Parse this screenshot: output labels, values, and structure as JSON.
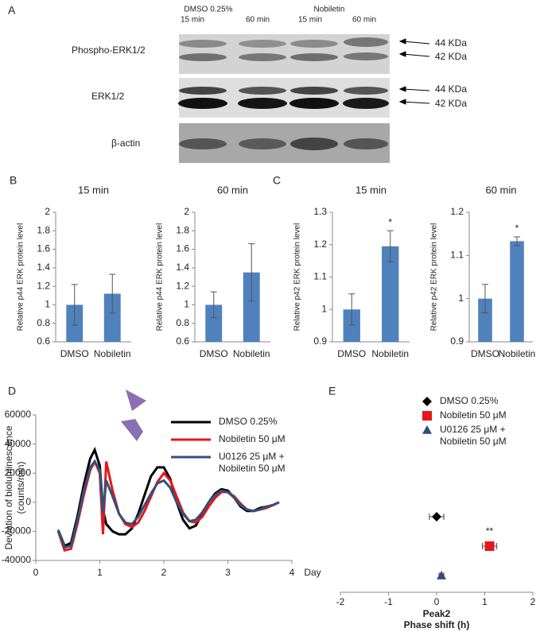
{
  "blot": {
    "label": "A",
    "groups": [
      "DMSO 0.25%",
      "Nobiletin"
    ],
    "times": [
      "15 min",
      "60 min",
      "15 min",
      "60 min"
    ],
    "rows": [
      "Phospho-ERK1/2",
      "ERK1/2",
      "β-actin"
    ],
    "bands": [
      "44 KDa",
      "42 KDa",
      "44 KDa",
      "42 KDa"
    ]
  },
  "chart_data": [
    {
      "type": "bar",
      "panel": "B",
      "title": "15 min",
      "ylabel": "Relative p44 ERK protein level",
      "categories": [
        "DMSO",
        "Nobiletin"
      ],
      "values": [
        1.0,
        1.12
      ],
      "errors": [
        0.22,
        0.21
      ],
      "color": "#4f81bd",
      "ylim": [
        0.6,
        2
      ],
      "yticks": [
        0.6,
        0.8,
        1,
        1.2,
        1.4,
        1.6,
        1.8,
        2
      ]
    },
    {
      "type": "bar",
      "title": "60 min",
      "ylabel": "Relative p44 ERK protein level",
      "categories": [
        "DMSO",
        "Nobiletin"
      ],
      "values": [
        1.0,
        1.35
      ],
      "errors": [
        0.14,
        0.31
      ],
      "color": "#4f81bd",
      "ylim": [
        0.6,
        2
      ],
      "yticks": [
        0.6,
        0.8,
        1,
        1.2,
        1.4,
        1.6,
        1.8,
        2
      ]
    },
    {
      "type": "bar",
      "panel": "C",
      "title": "15 min",
      "ylabel": "Relative p42 ERK protein level",
      "categories": [
        "DMSO",
        "Nobiletin"
      ],
      "values": [
        1.0,
        1.195
      ],
      "errors": [
        0.048,
        0.048
      ],
      "color": "#4f81bd",
      "annotation": "*",
      "ylim": [
        0.9,
        1.3
      ],
      "yticks": [
        0.9,
        1,
        1.1,
        1.2,
        1.3
      ]
    },
    {
      "type": "bar",
      "title": "60 min",
      "ylabel": "Relative p42 ERK protein level",
      "categories": [
        "DMSO",
        "Nobiletin"
      ],
      "values": [
        1.0,
        1.133
      ],
      "errors": [
        0.033,
        0.01
      ],
      "color": "#4f81bd",
      "annotation": "*",
      "ylim": [
        0.9,
        1.2
      ],
      "yticks": [
        0.9,
        1,
        1.1,
        1.2
      ]
    },
    {
      "type": "line",
      "panel": "D",
      "ylabel": [
        "Deviation of bioluminescence",
        "(counts/min)"
      ],
      "xlabel": "Day",
      "x": [
        0.35,
        0.45,
        0.55,
        0.65,
        0.75,
        0.85,
        0.92,
        1.0,
        1.05,
        1.1,
        1.2,
        1.3,
        1.4,
        1.5,
        1.6,
        1.7,
        1.8,
        1.9,
        2.0,
        2.1,
        2.2,
        2.3,
        2.4,
        2.5,
        2.6,
        2.7,
        2.8,
        2.9,
        3.0,
        3.1,
        3.2,
        3.3,
        3.4,
        3.5,
        3.6,
        3.7,
        3.8
      ],
      "series": [
        {
          "name": "DMSO 0.25%",
          "color": "#000000",
          "values": [
            -19000,
            -30000,
            -28000,
            -10000,
            12000,
            30000,
            36000,
            25000,
            -5000,
            -15000,
            -20000,
            -22000,
            -22000,
            -18000,
            -8000,
            5000,
            18000,
            24000,
            24000,
            16000,
            0,
            -12000,
            -18000,
            -16000,
            -8000,
            0,
            6000,
            9000,
            8000,
            3000,
            -3000,
            -6000,
            -6000,
            -4000,
            -3000,
            -2000,
            0
          ]
        },
        {
          "name": "Nobiletin 50 μM",
          "color": "#e8161b",
          "values": [
            -20000,
            -33000,
            -32000,
            -15000,
            5000,
            22000,
            28000,
            20000,
            -22000,
            28000,
            8000,
            -8000,
            -15000,
            -17000,
            -14000,
            -6000,
            4000,
            14000,
            20000,
            15000,
            4000,
            -7000,
            -13000,
            -14000,
            -10000,
            -3000,
            3000,
            7000,
            7000,
            4000,
            -1000,
            -5000,
            -6000,
            -5000,
            -4000,
            -2000,
            0
          ]
        },
        {
          "name": "U0126 25 μM + Nobiletin 50 μM",
          "color": "#34507a",
          "values": [
            -19000,
            -31000,
            -30000,
            -13000,
            8000,
            24000,
            28000,
            22000,
            -8000,
            15000,
            4000,
            -8000,
            -14000,
            -15000,
            -10000,
            -2000,
            6000,
            13000,
            15000,
            10000,
            0,
            -8000,
            -13000,
            -12000,
            -7000,
            0,
            5000,
            8000,
            7000,
            3000,
            -2000,
            -5000,
            -6000,
            -5000,
            -3000,
            -2000,
            0
          ]
        }
      ],
      "xlim": [
        0,
        4
      ],
      "xticks": [
        0,
        1,
        2,
        3,
        4
      ],
      "ylim": [
        -40000,
        60000
      ],
      "yticks": [
        -40000,
        -20000,
        0,
        20000,
        40000,
        60000
      ]
    },
    {
      "type": "dot",
      "panel": "E",
      "xlabel": [
        "Peak2",
        "Phase shift (h)"
      ],
      "annotation": "**",
      "series": [
        {
          "name": "DMSO 0.25%",
          "color": "#000000",
          "marker": "diamond",
          "values": [
            0
          ],
          "errors": [
            0.15
          ]
        },
        {
          "name": "Nobiletin 50 μM",
          "color": "#e8161b",
          "marker": "square",
          "values": [
            1.1
          ],
          "errors": [
            0.15
          ]
        },
        {
          "name": "U0126 25 μM + Nobiletin 50 μM",
          "color": "#2f4b7c",
          "marker": "triangle",
          "values": [
            0.1
          ],
          "errors": [
            0.05
          ]
        }
      ],
      "xlim": [
        -2,
        2
      ],
      "xticks": [
        -2,
        -1,
        0,
        1,
        2
      ]
    }
  ]
}
